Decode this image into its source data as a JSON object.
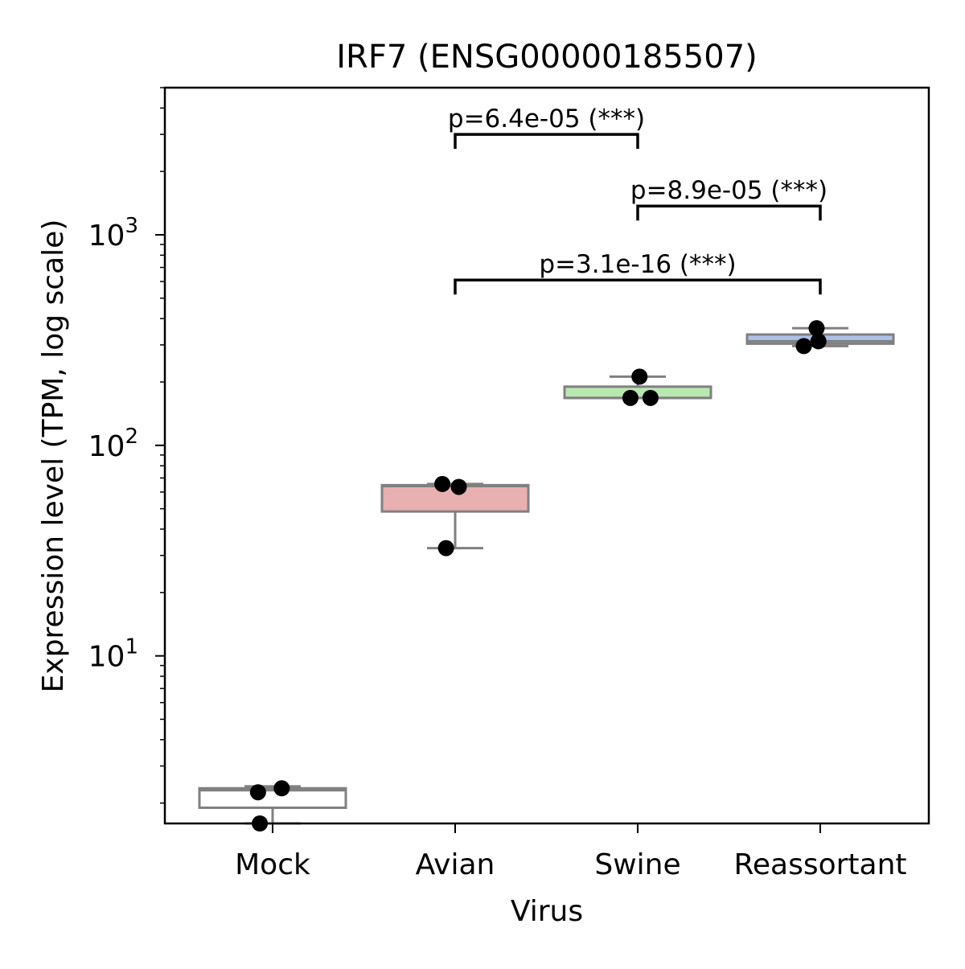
{
  "chart_data": {
    "type": "box",
    "title": "IRF7 (ENSG00000185507)",
    "xlabel": "Virus",
    "ylabel": "Expression level (TPM, log scale)",
    "yscale": "log",
    "ylim": [
      1.6,
      5000
    ],
    "yticks": [
      {
        "value": 10,
        "base": "10",
        "exp": "1"
      },
      {
        "value": 100,
        "base": "10",
        "exp": "2"
      },
      {
        "value": 1000,
        "base": "10",
        "exp": "3"
      }
    ],
    "categories": [
      "Mock",
      "Avian",
      "Swine",
      "Reassortant"
    ],
    "boxes": [
      {
        "name": "Mock",
        "color": "#ffffff",
        "whisker_low": 1.6,
        "q1": 1.9,
        "median": 2.3,
        "q3": 2.35,
        "whisker_high": 2.4,
        "points": [
          {
            "y": 2.25,
            "dx": -0.08
          },
          {
            "y": 2.35,
            "dx": 0.05
          },
          {
            "y": 1.6,
            "dx": -0.07
          }
        ]
      },
      {
        "name": "Avian",
        "color": "#e8b0b0",
        "whisker_low": 32.5,
        "q1": 48.5,
        "median": 64,
        "q3": 64.7,
        "whisker_high": 65.5,
        "points": [
          {
            "y": 65.5,
            "dx": -0.07
          },
          {
            "y": 63.5,
            "dx": 0.02
          },
          {
            "y": 32.5,
            "dx": -0.05
          }
        ]
      },
      {
        "name": "Swine",
        "color": "#b8e8b0",
        "whisker_low": 168,
        "q1": 168,
        "median": 168,
        "q3": 190,
        "whisker_high": 212,
        "points": [
          {
            "y": 212,
            "dx": 0.01
          },
          {
            "y": 168,
            "dx": -0.04
          },
          {
            "y": 168,
            "dx": 0.07
          }
        ]
      },
      {
        "name": "Reassortant",
        "color": "#b0c0e8",
        "whisker_low": 296,
        "q1": 304,
        "median": 312,
        "q3": 336,
        "whisker_high": 360,
        "points": [
          {
            "y": 360,
            "dx": -0.02
          },
          {
            "y": 312,
            "dx": -0.01
          },
          {
            "y": 296,
            "dx": -0.09
          }
        ]
      }
    ],
    "annotations": [
      {
        "from": "Avian",
        "to": "Swine",
        "y": 3000,
        "label": "p=6.4e-05 (***)"
      },
      {
        "from": "Swine",
        "to": "Reassortant",
        "y": 1370,
        "label": "p=8.9e-05 (***)"
      },
      {
        "from": "Avian",
        "to": "Reassortant",
        "y": 610,
        "label": "p=3.1e-16 (***)"
      }
    ],
    "grid": false
  }
}
